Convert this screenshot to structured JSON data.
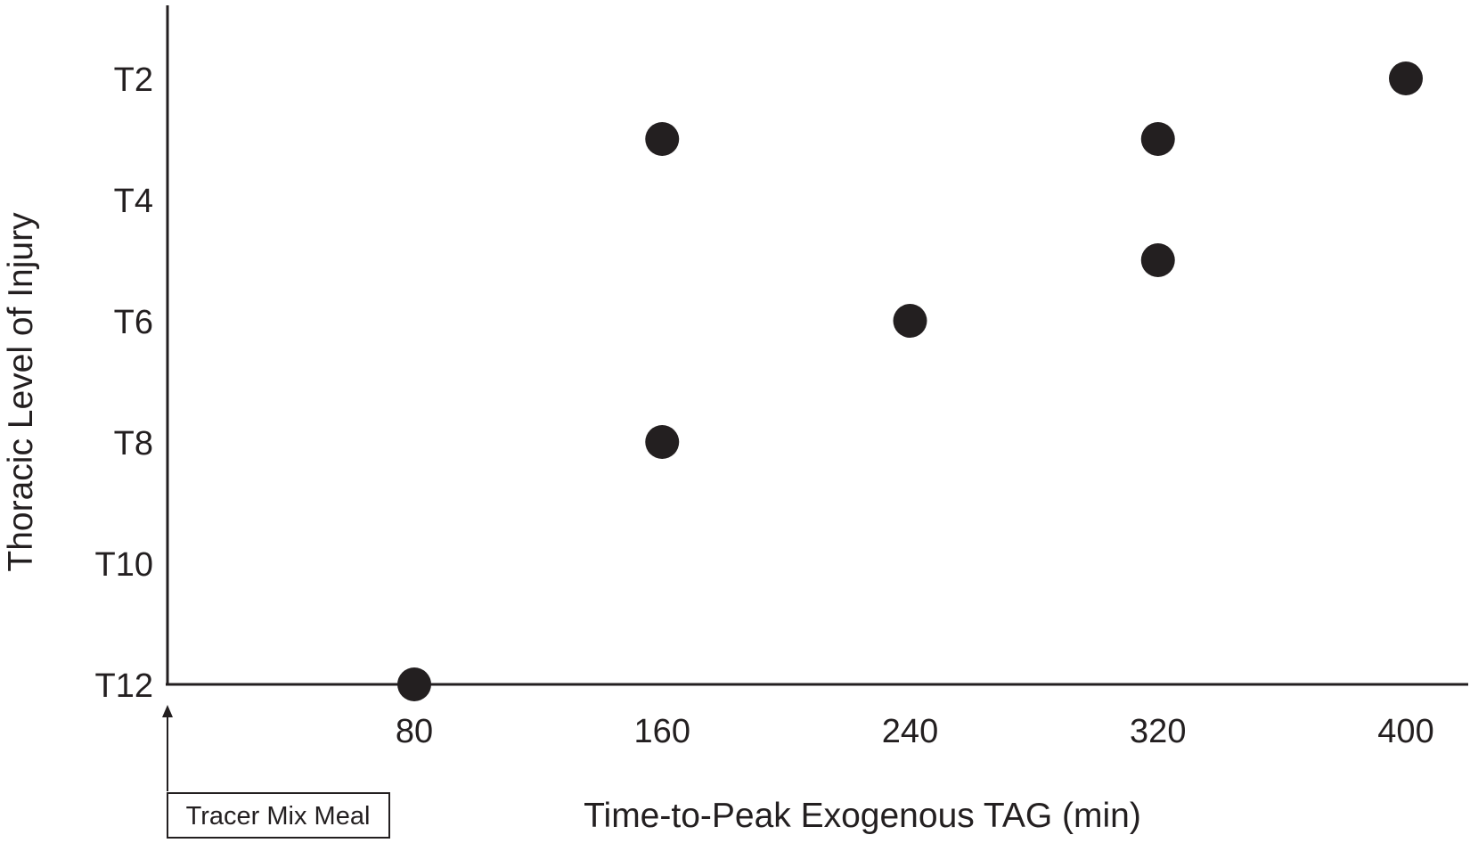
{
  "chart_data": {
    "type": "scatter",
    "title": "",
    "xlabel": "Time-to-Peak Exogenous TAG (min)",
    "ylabel": "Thoracic Level of Injury",
    "x_ticks": [
      80,
      160,
      240,
      320,
      400
    ],
    "xlim": [
      0,
      420
    ],
    "y_ticks": [
      "T2",
      "T4",
      "T6",
      "T8",
      "T10",
      "T12"
    ],
    "ylim": [
      1,
      12
    ],
    "y_reversed": true,
    "grid": false,
    "legend": "none",
    "points": [
      {
        "x": 80,
        "y": 12
      },
      {
        "x": 160,
        "y": 3
      },
      {
        "x": 160,
        "y": 8
      },
      {
        "x": 240,
        "y": 6
      },
      {
        "x": 320,
        "y": 3
      },
      {
        "x": 320,
        "y": 5
      },
      {
        "x": 400,
        "y": 2
      }
    ],
    "annotation": "Tracer Mix Meal",
    "colors": {
      "marker": "#231f20",
      "axis": "#231f20"
    }
  }
}
